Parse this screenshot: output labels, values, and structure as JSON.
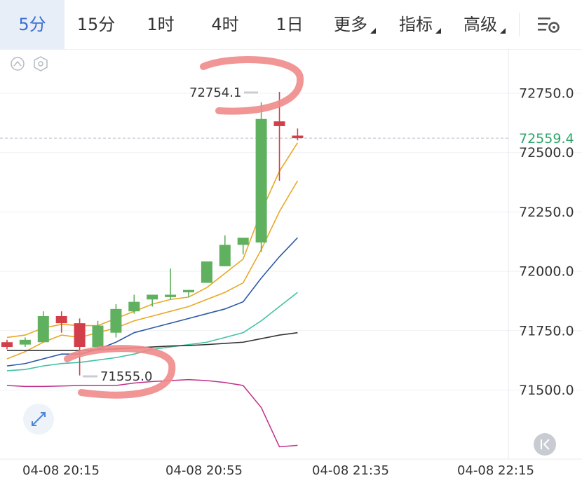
{
  "toolbar": {
    "tabs": [
      {
        "label": "5分",
        "active": true
      },
      {
        "label": "15分"
      },
      {
        "label": "1时"
      },
      {
        "label": "4时"
      },
      {
        "label": "1日"
      },
      {
        "label": "更多"
      },
      {
        "label": "指标"
      },
      {
        "label": "高级"
      }
    ]
  },
  "chart_data": {
    "type": "candlestick",
    "y_ticks": [
      "72750.0",
      "72500.0",
      "72250.0",
      "72000.0",
      "71750.0",
      "71500.0"
    ],
    "y_values": [
      72750,
      72500,
      72250,
      72000,
      71750,
      71500
    ],
    "x_ticks": [
      "04-08 20:15",
      "04-08 20:55",
      "04-08 21:35",
      "04-08 22:15"
    ],
    "current_price": "72559.4",
    "high_label": "72754.1",
    "low_label": "71555.0",
    "candles": [
      {
        "o": 71700,
        "h": 71710,
        "l": 71670,
        "c": 71680
      },
      {
        "o": 71690,
        "h": 71720,
        "l": 71680,
        "c": 71710
      },
      {
        "o": 71700,
        "h": 71830,
        "l": 71700,
        "c": 71810
      },
      {
        "o": 71810,
        "h": 71830,
        "l": 71740,
        "c": 71780
      },
      {
        "o": 71780,
        "h": 71800,
        "l": 71560,
        "c": 71680
      },
      {
        "o": 71680,
        "h": 71790,
        "l": 71670,
        "c": 71770
      },
      {
        "o": 71740,
        "h": 71860,
        "l": 71720,
        "c": 71840
      },
      {
        "o": 71830,
        "h": 71900,
        "l": 71820,
        "c": 71870
      },
      {
        "o": 71880,
        "h": 71900,
        "l": 71850,
        "c": 71900
      },
      {
        "o": 71890,
        "h": 72010,
        "l": 71880,
        "c": 71900
      },
      {
        "o": 71910,
        "h": 71920,
        "l": 71890,
        "c": 71920
      },
      {
        "o": 71950,
        "h": 72040,
        "l": 71950,
        "c": 72040
      },
      {
        "o": 72020,
        "h": 72150,
        "l": 72020,
        "c": 72110
      },
      {
        "o": 72110,
        "h": 72140,
        "l": 72070,
        "c": 72140
      },
      {
        "o": 72120,
        "h": 72710,
        "l": 72080,
        "c": 72640
      },
      {
        "o": 72630,
        "h": 72754.1,
        "l": 72380,
        "c": 72610
      },
      {
        "o": 72570,
        "h": 72600,
        "l": 72550,
        "c": 72559.4
      }
    ],
    "ma_lines": [
      {
        "color": "#e9a825",
        "values": [
          71720,
          71730,
          71760,
          71775,
          71770,
          71770,
          71800,
          71830,
          71860,
          71880,
          71890,
          71930,
          71990,
          72050,
          72250,
          72420,
          72540
        ]
      },
      {
        "color": "#e9a825",
        "values": [
          71630,
          71660,
          71700,
          71730,
          71720,
          71740,
          71760,
          71790,
          71810,
          71830,
          71850,
          71880,
          71910,
          71950,
          72090,
          72250,
          72380
        ]
      },
      {
        "color": "#2b5aa6",
        "values": [
          71600,
          71610,
          71630,
          71650,
          71650,
          71670,
          71700,
          71740,
          71760,
          71780,
          71800,
          71820,
          71840,
          71870,
          71970,
          72060,
          72140
        ]
      },
      {
        "color": "#41c1a3",
        "values": [
          71580,
          71585,
          71600,
          71610,
          71615,
          71625,
          71635,
          71650,
          71670,
          71680,
          71690,
          71700,
          71720,
          71740,
          71790,
          71850,
          71910
        ]
      },
      {
        "color": "#333333",
        "values": [
          71665,
          71665,
          71665,
          71665,
          71665,
          71668,
          71672,
          71676,
          71680,
          71684,
          71686,
          71690,
          71695,
          71700,
          71715,
          71730,
          71740
        ]
      }
    ],
    "indicator": {
      "color": "#c0308a",
      "values": [
        0.5,
        0.48,
        0.48,
        0.49,
        0.5,
        0.5,
        0.5,
        0.55,
        0.58,
        0.6,
        0.62,
        0.6,
        0.56,
        0.5,
        0.05,
        -0.75,
        -0.72
      ]
    },
    "colors": {
      "up": "#5fb05f",
      "down": "#d23f49",
      "grid": "#edf0f4"
    }
  }
}
